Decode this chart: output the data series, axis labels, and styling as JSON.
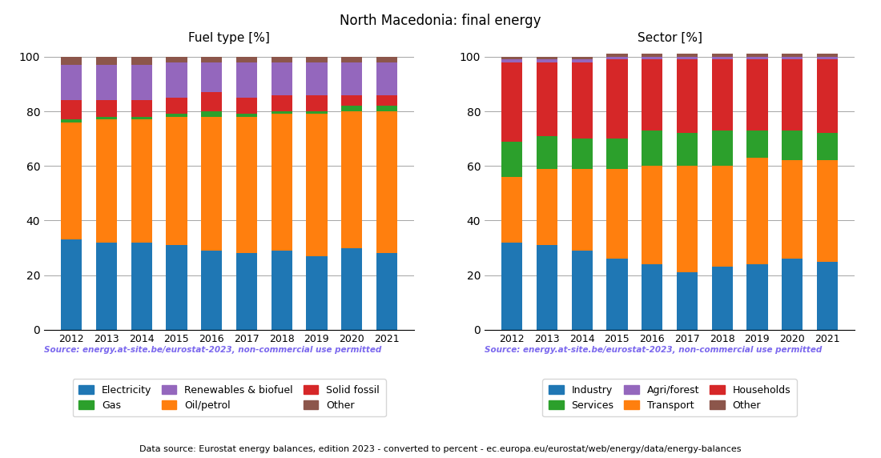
{
  "title": "North Macedonia: final energy",
  "years": [
    2012,
    2013,
    2014,
    2015,
    2016,
    2017,
    2018,
    2019,
    2020,
    2021
  ],
  "fuel_title": "Fuel type [%]",
  "fuel_electricity": [
    33,
    32,
    32,
    31,
    29,
    28,
    29,
    27,
    30,
    28
  ],
  "fuel_oil": [
    43,
    45,
    45,
    47,
    49,
    50,
    50,
    52,
    50,
    52
  ],
  "fuel_gas": [
    1,
    1,
    1,
    1,
    2,
    1,
    1,
    1,
    2,
    2
  ],
  "fuel_solid": [
    7,
    6,
    6,
    6,
    7,
    6,
    6,
    6,
    4,
    4
  ],
  "fuel_renewables": [
    13,
    13,
    13,
    13,
    11,
    13,
    12,
    12,
    12,
    12
  ],
  "fuel_other": [
    3,
    3,
    3,
    2,
    2,
    2,
    2,
    2,
    2,
    2
  ],
  "sector_title": "Sector [%]",
  "sector_industry": [
    32,
    31,
    29,
    26,
    24,
    21,
    23,
    24,
    26,
    25
  ],
  "sector_transport": [
    24,
    28,
    30,
    33,
    36,
    39,
    37,
    39,
    36,
    37
  ],
  "sector_services": [
    13,
    12,
    11,
    11,
    13,
    12,
    13,
    10,
    11,
    10
  ],
  "sector_households": [
    29,
    27,
    28,
    29,
    26,
    27,
    26,
    26,
    26,
    27
  ],
  "sector_agriforest": [
    1,
    1,
    1,
    1,
    1,
    1,
    1,
    1,
    1,
    1
  ],
  "sector_other": [
    1,
    1,
    1,
    1,
    1,
    1,
    1,
    1,
    1,
    1
  ],
  "color_electricity": "#1f77b4",
  "color_oil": "#ff7f0e",
  "color_gas": "#2ca02c",
  "color_solid": "#d62728",
  "color_renewables": "#9467bd",
  "color_other_fuel": "#8c564b",
  "color_industry": "#1f77b4",
  "color_transport": "#ff7f0e",
  "color_services": "#2ca02c",
  "color_households": "#d62728",
  "color_agriforest": "#9467bd",
  "color_other_sector": "#8c564b",
  "source_text": "Source: energy.at-site.be/eurostat-2023, non-commercial use permitted",
  "footer_text": "Data source: Eurostat energy balances, edition 2023 - converted to percent - ec.europa.eu/eurostat/web/energy/data/energy-balances",
  "source_color": "#7b68ee"
}
